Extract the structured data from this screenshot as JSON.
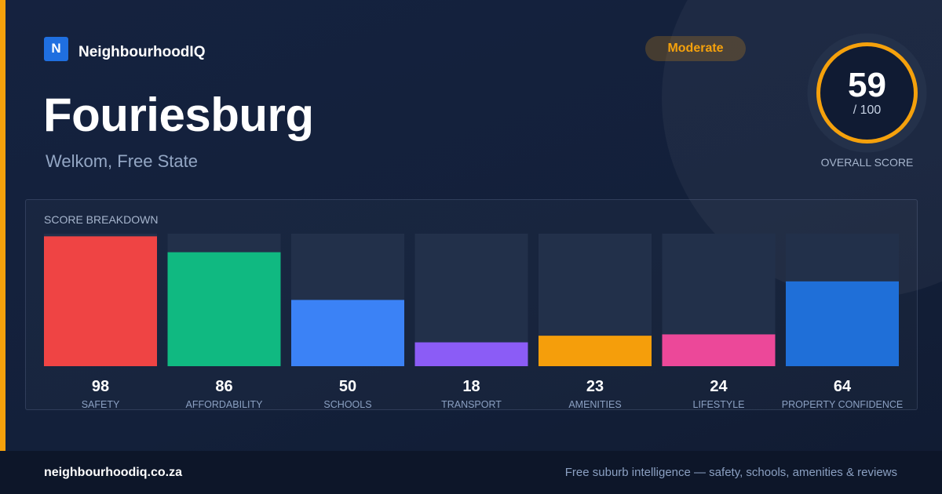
{
  "brand": {
    "logo_letter": "N",
    "name": "NeighbourhoodIQ"
  },
  "suburb": {
    "name": "Fouriesburg",
    "location": "Welkom, Free State"
  },
  "rating": {
    "label": "Moderate",
    "color": "#f5a10c"
  },
  "overall": {
    "score": "59",
    "max": "/ 100",
    "label": "OVERALL SCORE",
    "value": 59,
    "out_of": 100
  },
  "breakdown_title": "SCORE BREAKDOWN",
  "chart_data": {
    "type": "bar",
    "title": "SCORE BREAKDOWN",
    "categories": [
      "SAFETY",
      "AFFORDABILITY",
      "SCHOOLS",
      "TRANSPORT",
      "AMENITIES",
      "LIFESTYLE",
      "PROPERTY CONFIDENCE"
    ],
    "values": [
      98,
      86,
      50,
      18,
      23,
      24,
      64
    ],
    "colors": [
      "#ef4444",
      "#10b981",
      "#3b82f6",
      "#8b5cf6",
      "#f59e0b",
      "#ec4899",
      "#1f6fd8"
    ],
    "ylim": [
      0,
      100
    ],
    "grid": false
  },
  "footer": {
    "url": "neighbourhoodiq.co.za",
    "tagline": "Free suburb intelligence — safety, schools, amenities & reviews"
  }
}
